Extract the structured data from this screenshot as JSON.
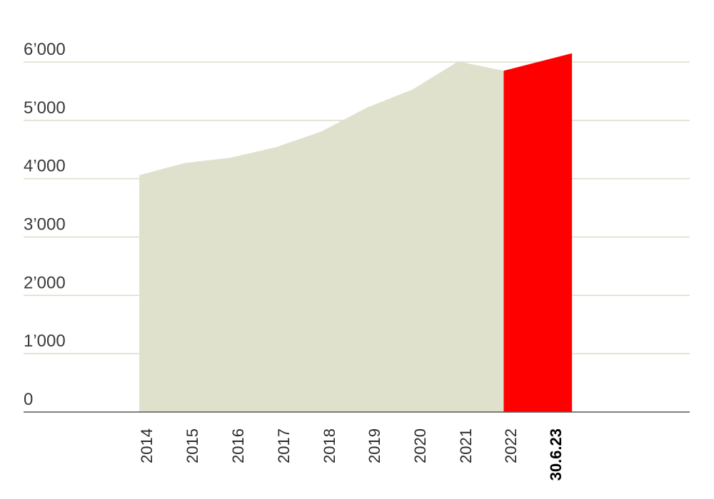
{
  "chart_data": {
    "type": "area",
    "title": "",
    "xlabel": "",
    "ylabel": "",
    "ylim": [
      0,
      6000
    ],
    "yticks": [
      0,
      1000,
      2000,
      3000,
      4000,
      5000,
      6000
    ],
    "ytick_labels": [
      "0",
      "1’000",
      "2’000",
      "3’000",
      "4’000",
      "5’000",
      "6’000"
    ],
    "categories": [
      "2014",
      "2015",
      "2016",
      "2017",
      "2018",
      "2019",
      "2020",
      "2021",
      "2022",
      "30.6.23"
    ],
    "series": [
      {
        "color": "#e0e1cd",
        "x": [
          2014,
          2015,
          2016,
          2017,
          2018,
          2019,
          2020,
          2021,
          2022
        ],
        "values": [
          4060,
          4270,
          4360,
          4540,
          4810,
          5220,
          5530,
          6010,
          5850
        ]
      },
      {
        "color": "#ff0000",
        "x": [
          2022,
          2023.5
        ],
        "values": [
          5850,
          6150
        ]
      }
    ],
    "highlight_category": "30.6.23",
    "grid": true,
    "grid_color": "#dcdcc6",
    "axis_color": "#555555"
  }
}
